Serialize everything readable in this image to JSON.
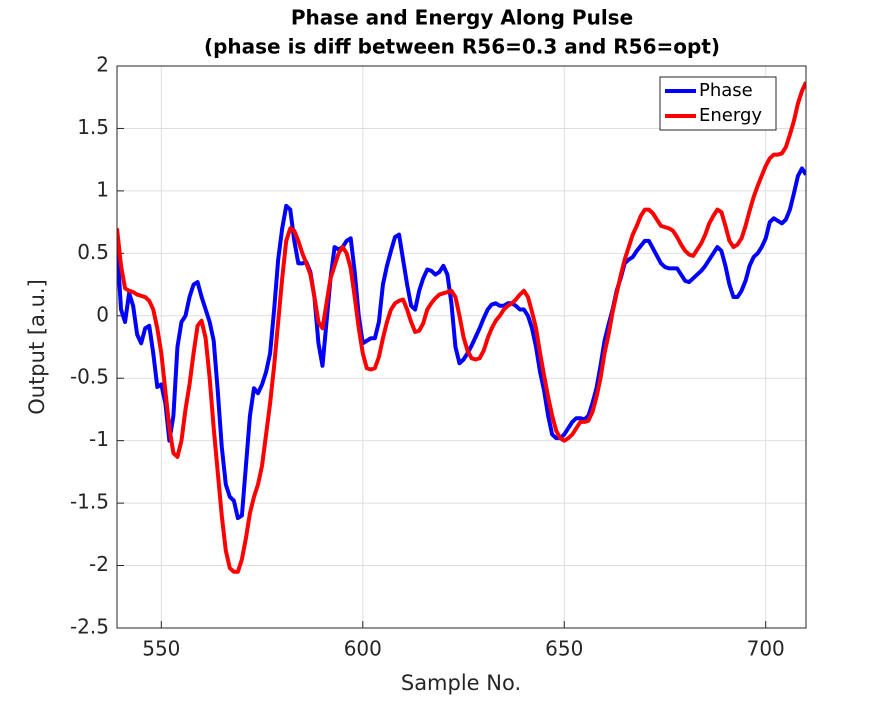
{
  "chart_data": {
    "type": "line",
    "title": "Phase and Energy Along Pulse",
    "subtitle": "(phase is diff between R56=0.3 and R56=opt)",
    "x_label": "Sample No.",
    "y_label": "Output [a.u.]",
    "xlim": [
      539,
      710
    ],
    "xticks": [
      550,
      600,
      650,
      700
    ],
    "ylim": [
      -2.5,
      2
    ],
    "yticks": [
      -2.5,
      -2,
      -1.5,
      -1,
      -0.5,
      0,
      0.5,
      1,
      1.5,
      2
    ],
    "grid": true,
    "legend": "top-right",
    "x": [
      539,
      540,
      541,
      542,
      543,
      544,
      545,
      546,
      547,
      548,
      549,
      550,
      551,
      552,
      553,
      554,
      555,
      556,
      557,
      558,
      559,
      560,
      561,
      562,
      563,
      564,
      565,
      566,
      567,
      568,
      569,
      570,
      571,
      572,
      573,
      574,
      575,
      576,
      577,
      578,
      579,
      580,
      581,
      582,
      583,
      584,
      585,
      586,
      587,
      588,
      589,
      590,
      591,
      592,
      593,
      594,
      595,
      596,
      597,
      598,
      599,
      600,
      601,
      602,
      603,
      604,
      605,
      606,
      607,
      608,
      609,
      610,
      611,
      612,
      613,
      614,
      615,
      616,
      617,
      618,
      619,
      620,
      621,
      622,
      623,
      624,
      625,
      626,
      627,
      628,
      629,
      630,
      631,
      632,
      633,
      634,
      635,
      636,
      637,
      638,
      639,
      640,
      641,
      642,
      643,
      644,
      645,
      646,
      647,
      648,
      649,
      650,
      651,
      652,
      653,
      654,
      655,
      656,
      657,
      658,
      659,
      660,
      661,
      662,
      663,
      664,
      665,
      666,
      667,
      668,
      669,
      670,
      671,
      672,
      673,
      674,
      675,
      676,
      677,
      678,
      679,
      680,
      681,
      682,
      683,
      684,
      685,
      686,
      687,
      688,
      689,
      690,
      691,
      692,
      693,
      694,
      695,
      696,
      697,
      698,
      699,
      700,
      701,
      702,
      703,
      704,
      705,
      706,
      707,
      708,
      709,
      710
    ],
    "series": [
      {
        "name": "Phase",
        "color": "#0000ff",
        "values": [
          0.58,
          0.05,
          -0.05,
          0.18,
          0.08,
          -0.15,
          -0.22,
          -0.1,
          -0.08,
          -0.3,
          -0.57,
          -0.55,
          -0.7,
          -1.0,
          -0.8,
          -0.25,
          -0.05,
          0.0,
          0.15,
          0.25,
          0.27,
          0.15,
          0.05,
          -0.05,
          -0.2,
          -0.6,
          -1.05,
          -1.35,
          -1.45,
          -1.48,
          -1.62,
          -1.6,
          -1.2,
          -0.8,
          -0.58,
          -0.62,
          -0.55,
          -0.45,
          -0.3,
          0.05,
          0.45,
          0.7,
          0.88,
          0.85,
          0.6,
          0.42,
          0.42,
          0.43,
          0.35,
          0.15,
          -0.22,
          -0.4,
          -0.05,
          0.3,
          0.55,
          0.53,
          0.55,
          0.6,
          0.62,
          0.35,
          0.0,
          -0.22,
          -0.2,
          -0.18,
          -0.18,
          -0.05,
          0.25,
          0.4,
          0.52,
          0.63,
          0.65,
          0.45,
          0.25,
          0.08,
          0.05,
          0.2,
          0.3,
          0.37,
          0.36,
          0.33,
          0.35,
          0.4,
          0.33,
          0.1,
          -0.25,
          -0.38,
          -0.35,
          -0.3,
          -0.24,
          -0.17,
          -0.1,
          -0.02,
          0.05,
          0.09,
          0.1,
          0.08,
          0.08,
          0.1,
          0.1,
          0.08,
          0.05,
          0.05,
          0.0,
          -0.1,
          -0.25,
          -0.45,
          -0.6,
          -0.8,
          -0.95,
          -0.98,
          -0.98,
          -0.95,
          -0.9,
          -0.85,
          -0.82,
          -0.82,
          -0.83,
          -0.8,
          -0.7,
          -0.58,
          -0.4,
          -0.2,
          -0.07,
          0.05,
          0.2,
          0.3,
          0.42,
          0.45,
          0.47,
          0.52,
          0.56,
          0.6,
          0.6,
          0.54,
          0.48,
          0.42,
          0.39,
          0.38,
          0.38,
          0.38,
          0.33,
          0.28,
          0.27,
          0.3,
          0.33,
          0.36,
          0.4,
          0.45,
          0.5,
          0.55,
          0.52,
          0.4,
          0.25,
          0.15,
          0.15,
          0.2,
          0.28,
          0.4,
          0.47,
          0.5,
          0.55,
          0.62,
          0.75,
          0.78,
          0.76,
          0.74,
          0.77,
          0.85,
          0.98,
          1.12,
          1.18,
          1.13
        ]
      },
      {
        "name": "Energy",
        "color": "#ff0000",
        "values": [
          0.7,
          0.4,
          0.22,
          0.2,
          0.19,
          0.17,
          0.16,
          0.15,
          0.12,
          0.05,
          -0.1,
          -0.3,
          -0.6,
          -0.9,
          -1.1,
          -1.13,
          -1.0,
          -0.75,
          -0.55,
          -0.3,
          -0.08,
          -0.04,
          -0.18,
          -0.5,
          -0.9,
          -1.25,
          -1.6,
          -1.88,
          -2.02,
          -2.05,
          -2.05,
          -1.95,
          -1.78,
          -1.58,
          -1.45,
          -1.35,
          -1.2,
          -0.95,
          -0.7,
          -0.4,
          -0.05,
          0.3,
          0.6,
          0.7,
          0.68,
          0.6,
          0.5,
          0.42,
          0.33,
          0.15,
          -0.05,
          -0.1,
          0.1,
          0.3,
          0.4,
          0.5,
          0.55,
          0.5,
          0.38,
          0.15,
          -0.1,
          -0.3,
          -0.42,
          -0.43,
          -0.42,
          -0.33,
          -0.18,
          -0.05,
          0.05,
          0.1,
          0.12,
          0.13,
          0.05,
          -0.05,
          -0.13,
          -0.12,
          -0.06,
          0.05,
          0.1,
          0.14,
          0.17,
          0.18,
          0.19,
          0.2,
          0.15,
          0.0,
          -0.17,
          -0.28,
          -0.34,
          -0.35,
          -0.34,
          -0.28,
          -0.18,
          -0.1,
          -0.04,
          0.0,
          0.05,
          0.08,
          0.1,
          0.13,
          0.17,
          0.2,
          0.15,
          0.03,
          -0.1,
          -0.3,
          -0.48,
          -0.65,
          -0.8,
          -0.92,
          -0.98,
          -1.0,
          -0.98,
          -0.95,
          -0.9,
          -0.85,
          -0.85,
          -0.84,
          -0.77,
          -0.65,
          -0.5,
          -0.3,
          -0.15,
          0.03,
          0.18,
          0.32,
          0.45,
          0.55,
          0.65,
          0.72,
          0.8,
          0.85,
          0.85,
          0.82,
          0.77,
          0.72,
          0.71,
          0.7,
          0.68,
          0.63,
          0.57,
          0.52,
          0.49,
          0.48,
          0.53,
          0.58,
          0.65,
          0.74,
          0.8,
          0.85,
          0.83,
          0.72,
          0.6,
          0.55,
          0.57,
          0.62,
          0.72,
          0.84,
          0.95,
          1.04,
          1.12,
          1.2,
          1.26,
          1.29,
          1.29,
          1.3,
          1.35,
          1.45,
          1.56,
          1.7,
          1.8,
          1.87
        ]
      }
    ]
  }
}
